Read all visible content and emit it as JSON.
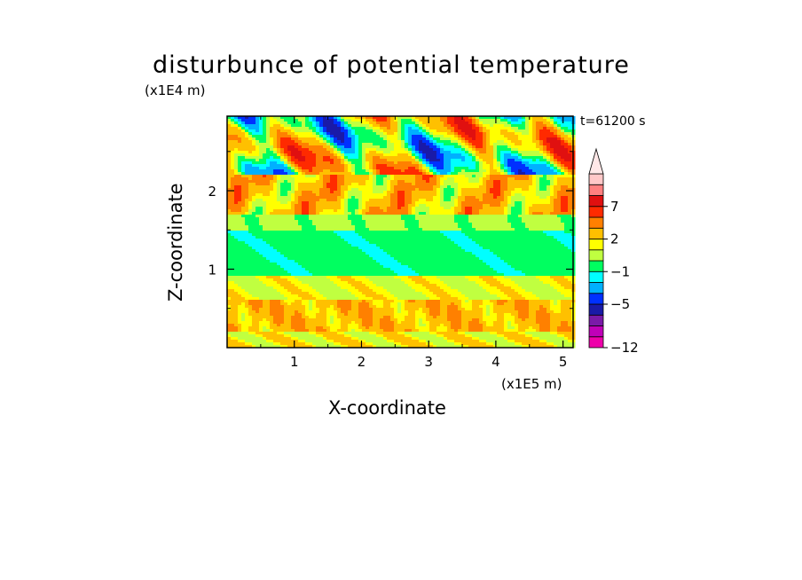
{
  "chart_data": {
    "type": "heatmap",
    "title": "disturbunce of potential temperature",
    "xlabel": "X-coordinate",
    "ylabel": "Z-coordinate",
    "x_unit": "(x1E5 m)",
    "y_unit": "(x1E4 m)",
    "time_stamp": "t=61200 s",
    "xlim": [
      0,
      5.15
    ],
    "ylim": [
      0,
      2.95
    ],
    "x_ticks": [
      "1",
      "2",
      "3",
      "4",
      "5"
    ],
    "y_ticks": [
      "1",
      "2"
    ],
    "colorbar": {
      "levels": [
        -12,
        -10,
        -8,
        -6.5,
        -5,
        -3.5,
        -2,
        -1,
        0,
        1,
        2,
        3.5,
        5,
        7,
        9,
        11
      ],
      "tick_labels": [
        "-12",
        "-5",
        "-1",
        "2",
        "7"
      ],
      "colors": [
        "#ee00aa",
        "#c000b8",
        "#7a1aa8",
        "#1a1aa8",
        "#0030ff",
        "#00b0ff",
        "#00ffff",
        "#00ff60",
        "#c0ff40",
        "#ffff00",
        "#ffc000",
        "#ff8000",
        "#ff2a00",
        "#e01010",
        "#ff8080",
        "#ffc8c8"
      ],
      "extend": "max"
    },
    "bands": [
      {
        "z_range": [
          0,
          0.2
        ],
        "description": "mixed yellow/green/orange"
      },
      {
        "z_range": [
          0.2,
          0.6
        ],
        "description": "orange and yellow"
      },
      {
        "z_range": [
          0.6,
          0.9
        ],
        "description": "green and yellow"
      },
      {
        "z_range": [
          0.9,
          1.5
        ],
        "description": "cyan"
      },
      {
        "z_range": [
          1.5,
          1.7
        ],
        "description": "green"
      },
      {
        "z_range": [
          1.7,
          2.2
        ],
        "description": "yellow and orange"
      },
      {
        "z_range": [
          2.2,
          2.95
        ],
        "description": "blue/cyan/red mixed"
      }
    ]
  }
}
